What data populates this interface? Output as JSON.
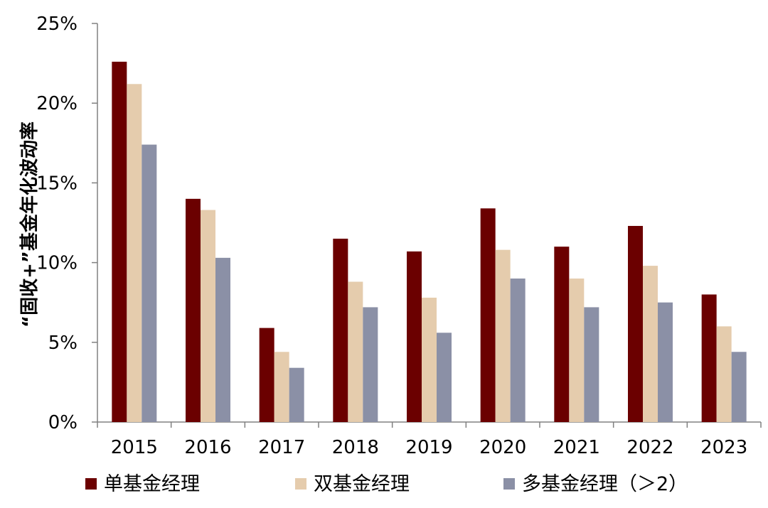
{
  "chart_data": {
    "type": "bar",
    "title": "",
    "xlabel": "",
    "ylabel": "“固收+”基金年化波动率",
    "categories": [
      "2015",
      "2016",
      "2017",
      "2018",
      "2019",
      "2020",
      "2021",
      "2022",
      "2023"
    ],
    "series": [
      {
        "name": "单基金经理",
        "color": "#6b0000",
        "values": [
          22.6,
          14.0,
          5.9,
          11.5,
          10.7,
          13.4,
          11.0,
          12.3,
          8.0
        ]
      },
      {
        "name": "双基金经理",
        "color": "#e5ccad",
        "values": [
          21.2,
          13.3,
          4.4,
          8.8,
          7.8,
          10.8,
          9.0,
          9.8,
          6.0
        ]
      },
      {
        "name": "多基金经理（＞2）",
        "color": "#8b90a6",
        "values": [
          17.4,
          10.3,
          3.4,
          7.2,
          5.6,
          9.0,
          7.2,
          7.5,
          4.4
        ]
      }
    ],
    "ylim": [
      0,
      25
    ],
    "yticks": [
      0,
      5,
      10,
      15,
      20,
      25
    ],
    "ytick_labels": [
      "0%",
      "5%",
      "10%",
      "15%",
      "20%",
      "25%"
    ],
    "grid": false,
    "legend_position": "bottom"
  }
}
